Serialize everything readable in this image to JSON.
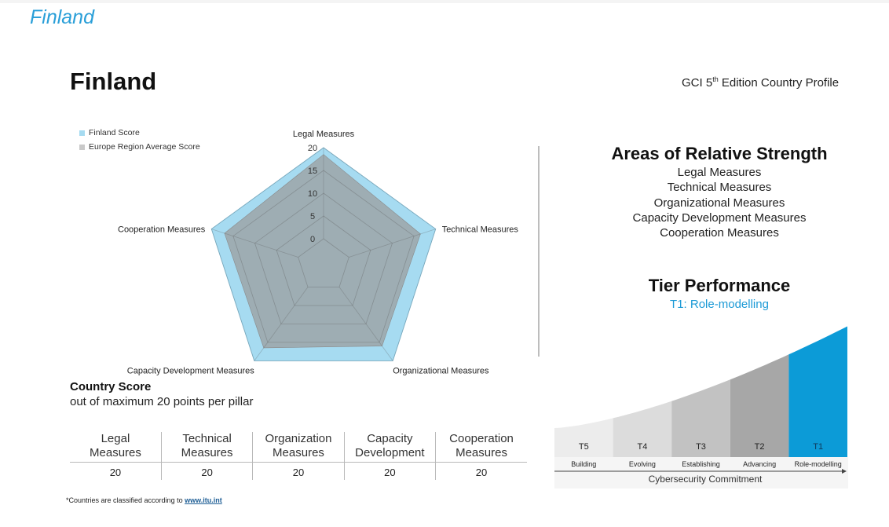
{
  "header": {
    "title": "Finland"
  },
  "page": {
    "country_title": "Finland",
    "edition_prefix": "GCI 5",
    "edition_sup": "th",
    "edition_suffix": " Edition Country Profile"
  },
  "colors": {
    "finland": "#a6dbf1",
    "europe": "#9b9b9b",
    "accent": "#1c9ad6",
    "t1": "#0c9bd7"
  },
  "chart_data": {
    "type": "radar",
    "axes": [
      "Legal Measures",
      "Technical Measures",
      "Organizational Measures",
      "Capacity Development Measures",
      "Cooperation Measures"
    ],
    "range": [
      0,
      20
    ],
    "ticks": [
      "0",
      "5",
      "10",
      "15",
      "20"
    ],
    "series": [
      {
        "name": "Finland Score",
        "values": [
          20,
          20,
          20,
          20,
          20
        ]
      },
      {
        "name": "Europe Region Average Score",
        "values": [
          18.5,
          16.5,
          16,
          16.5,
          17
        ]
      }
    ]
  },
  "strength": {
    "title": "Areas of Relative Strength",
    "items": [
      "Legal Measures",
      "Technical Measures",
      "Organizational Measures",
      "Capacity Development Measures",
      "Cooperation Measures"
    ]
  },
  "tier": {
    "title": "Tier Performance",
    "level": "T1: Role-modelling",
    "tiers": [
      {
        "code": "T5",
        "name": "Building",
        "color": "#ececec"
      },
      {
        "code": "T4",
        "name": "Evolving",
        "color": "#dcdcdc"
      },
      {
        "code": "T3",
        "name": "Establishing",
        "color": "#c2c2c2"
      },
      {
        "code": "T2",
        "name": "Advancing",
        "color": "#a7a7a7"
      },
      {
        "code": "T1",
        "name": "Role-modelling",
        "color": "#0c9bd7"
      }
    ],
    "axis_label": "Cybersecurity Commitment"
  },
  "score": {
    "title": "Country Score",
    "subtitle": "out of maximum 20 points per pillar",
    "headers": [
      [
        "Legal",
        "Measures"
      ],
      [
        "Technical",
        "Measures"
      ],
      [
        "Organization",
        "Measures"
      ],
      [
        "Capacity",
        "Development"
      ],
      [
        "Cooperation",
        "Measures"
      ]
    ],
    "values": [
      "20",
      "20",
      "20",
      "20",
      "20"
    ]
  },
  "footnote": {
    "text": "*Countries are classified according to ",
    "link": "www.itu.int"
  }
}
